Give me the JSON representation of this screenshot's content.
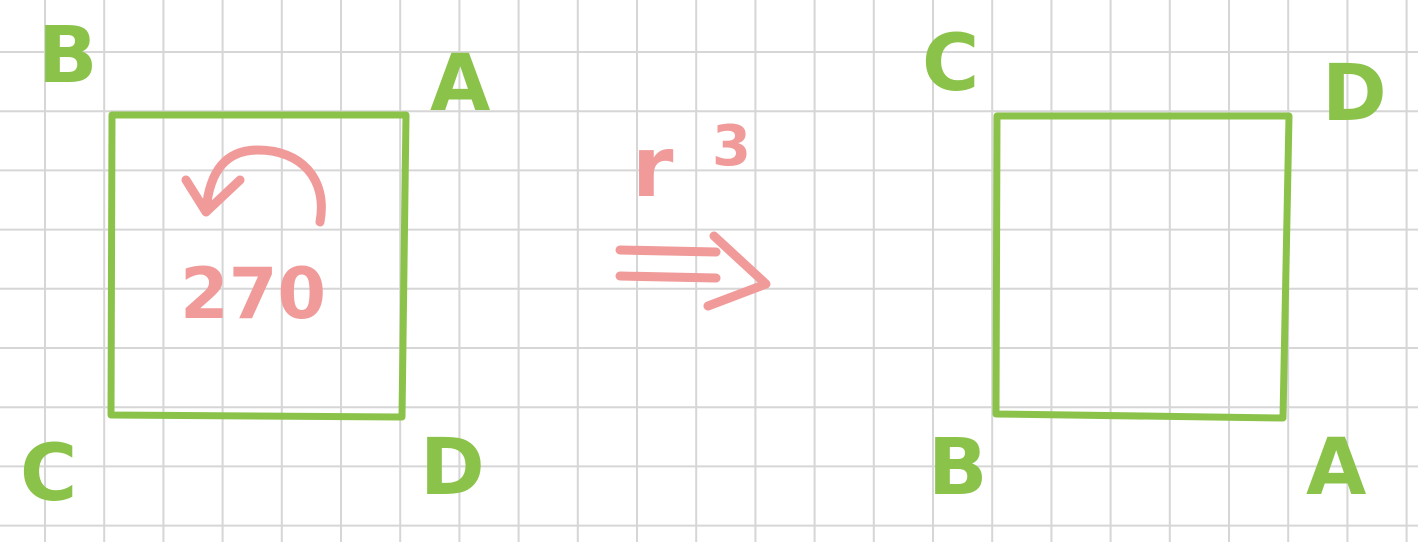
{
  "colors": {
    "shape": "#8bc34a",
    "annotation": "#f09a9a",
    "grid": "#d6d6d6",
    "background": "#ffffff"
  },
  "left_square": {
    "corner_top_left": "B",
    "corner_top_right": "A",
    "corner_bottom_left": "C",
    "corner_bottom_right": "D",
    "rotation_label": "270",
    "rotation_direction_icon": "counterclockwise-arrow-icon"
  },
  "transform": {
    "operation": "r",
    "exponent": "3",
    "arrow_icon": "double-arrow-right-icon"
  },
  "right_square": {
    "corner_top_left": "C",
    "corner_top_right": "D",
    "corner_bottom_left": "B",
    "corner_bottom_right": "A"
  }
}
